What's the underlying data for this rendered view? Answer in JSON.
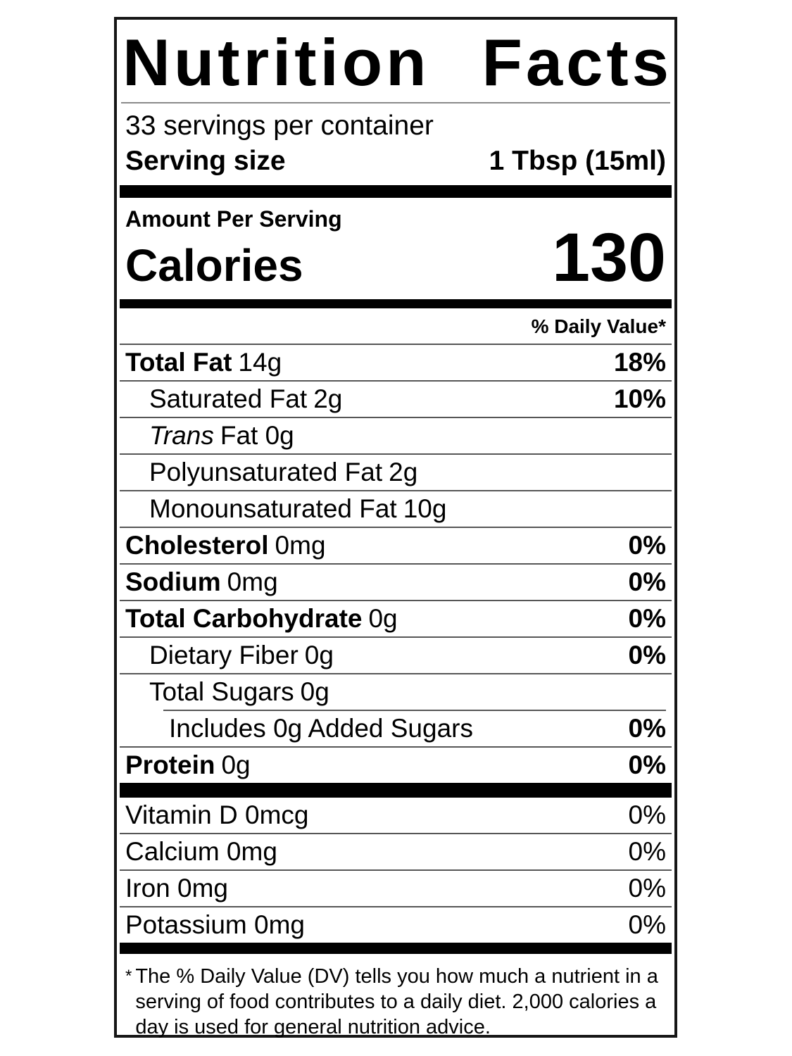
{
  "header": {
    "title_words": [
      "Nutrition",
      "Facts"
    ],
    "servings_per_container": "33 servings per container",
    "serving_size_label": "Serving size",
    "serving_size_value": "1 Tbsp (15ml)"
  },
  "calories": {
    "amount_per_serving": "Amount Per Serving",
    "label": "Calories",
    "value": "130"
  },
  "daily_value_header": "% Daily Value*",
  "nutrients": [
    {
      "name": "Total Fat",
      "amount": "14g",
      "dv": "18%"
    },
    {
      "name": "Saturated Fat",
      "amount": "2g",
      "dv": "10%"
    },
    {
      "name": "Trans",
      "amount": "Fat 0g",
      "dv": ""
    },
    {
      "name": "Polyunsaturated Fat",
      "amount": "2g",
      "dv": ""
    },
    {
      "name": "Monounsaturated Fat",
      "amount": "10g",
      "dv": ""
    },
    {
      "name": "Cholesterol",
      "amount": "0mg",
      "dv": "0%"
    },
    {
      "name": "Sodium",
      "amount": "0mg",
      "dv": "0%"
    },
    {
      "name": "Total Carbohydrate",
      "amount": "0g",
      "dv": "0%"
    },
    {
      "name": "Dietary Fiber",
      "amount": "0g",
      "dv": "0%"
    },
    {
      "name": "Total Sugars",
      "amount": "0g",
      "dv": ""
    },
    {
      "name": "Includes 0g Added Sugars",
      "amount": "",
      "dv": "0%"
    },
    {
      "name": "Protein",
      "amount": "0g",
      "dv": "0%"
    }
  ],
  "vitamins": [
    {
      "text": "Vitamin D 0mcg",
      "dv": "0%"
    },
    {
      "text": "Calcium 0mg",
      "dv": "0%"
    },
    {
      "text": "Iron 0mg",
      "dv": "0%"
    },
    {
      "text": "Potassium 0mg",
      "dv": "0%"
    }
  ],
  "footnote": {
    "marker": "*",
    "text": "The % Daily Value (DV) tells you how much a nutrient in a serving of food contributes to a daily diet. 2,000 calories a day is used for general nutrition advice."
  },
  "colors": {
    "text": "#000000",
    "background": "#ffffff",
    "border": "#161616",
    "divider": "#565656",
    "section_bar": "#000000"
  }
}
